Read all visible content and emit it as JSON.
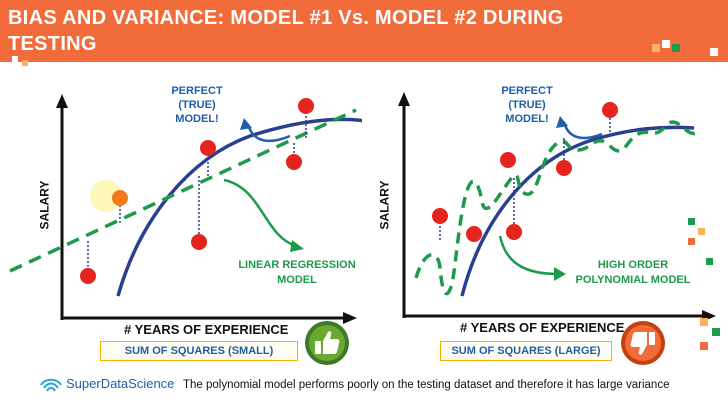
{
  "header": {
    "title_line1": "BIAS AND VARIANCE: MODEL #1 Vs. MODEL #2 DURING",
    "title_line2": "TESTING"
  },
  "colors": {
    "banner": "#f26b3a",
    "true_model_curve": "#2b3f8f",
    "fitted_model_line": "#1d9a4b",
    "data_point": "#e52420",
    "error_line": "#2b3f8f",
    "callout_text": "#1f5ea8",
    "box_border": "#f4b400"
  },
  "panels": [
    {
      "y_axis_label": "SALARY",
      "x_axis_label": "# YEARS OF EXPERIENCE",
      "true_model_callout": [
        "PERFECT",
        "(TRUE)",
        "MODEL!"
      ],
      "model_label": [
        "LINEAR REGRESSION",
        "MODEL"
      ],
      "sum_of_squares": "SUM OF SQUARES (SMALL)",
      "thumb_icon": "thumbs-up-icon"
    },
    {
      "y_axis_label": "SALARY",
      "x_axis_label": "# YEARS OF EXPERIENCE",
      "true_model_callout": [
        "PERFECT",
        "(TRUE)",
        "MODEL!"
      ],
      "model_label": [
        "HIGH ORDER",
        "POLYNOMIAL MODEL"
      ],
      "sum_of_squares": "SUM OF SQUARES (LARGE)",
      "thumb_icon": "thumbs-down-icon"
    }
  ],
  "footer": {
    "logo_text": "SuperDataScience",
    "logo_icon": "superdatascience-logo-icon",
    "caption": "The polynomial model performs poorly on the testing dataset and therefore it has large variance"
  }
}
